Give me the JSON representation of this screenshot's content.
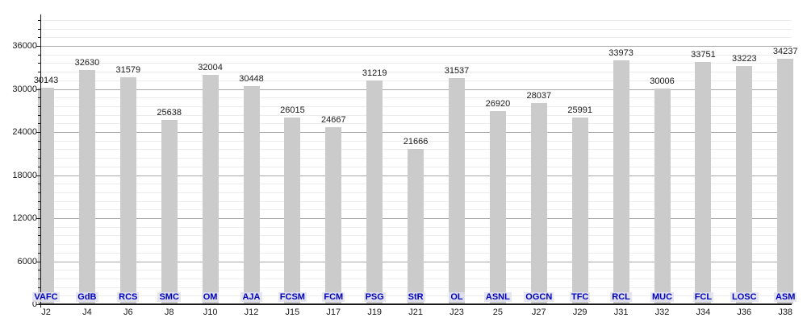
{
  "chart_data": {
    "type": "bar",
    "title": "",
    "xlabel": "",
    "ylabel": "",
    "categories": [
      "J2",
      "J4",
      "J6",
      "J8",
      "J10",
      "J12",
      "J15",
      "J17",
      "J19",
      "J21",
      "J23",
      "25",
      "J27",
      "J29",
      "J31",
      "J32",
      "J34",
      "J36",
      "J38"
    ],
    "bar_labels": [
      "VAFC",
      "GdB",
      "RCS",
      "SMC",
      "OM",
      "AJA",
      "FCSM",
      "FCM",
      "PSG",
      "StR",
      "OL",
      "ASNL",
      "OGCN",
      "TFC",
      "RCL",
      "MUC",
      "FCL",
      "LOSC",
      "ASM"
    ],
    "values": [
      30143,
      32630,
      31579,
      25638,
      32004,
      30448,
      26015,
      24667,
      31219,
      21666,
      31537,
      26920,
      28037,
      25991,
      33973,
      30006,
      33751,
      33223,
      34237
    ],
    "y_ticks": [
      0,
      6000,
      12000,
      18000,
      24000,
      30000,
      36000
    ],
    "ylim": [
      0,
      40300
    ],
    "minor_grid_step": 1200,
    "grid": true,
    "legend_position": "none",
    "colors": {
      "bar": "#cbcbcb",
      "value_label": "#1a1a1a",
      "team_label": "#0000bb",
      "team_label_bg": "#e2e2f0",
      "axis": "#1a1a1a",
      "major_grid": "#a8a8a8",
      "minor_grid": "#ececec"
    }
  }
}
